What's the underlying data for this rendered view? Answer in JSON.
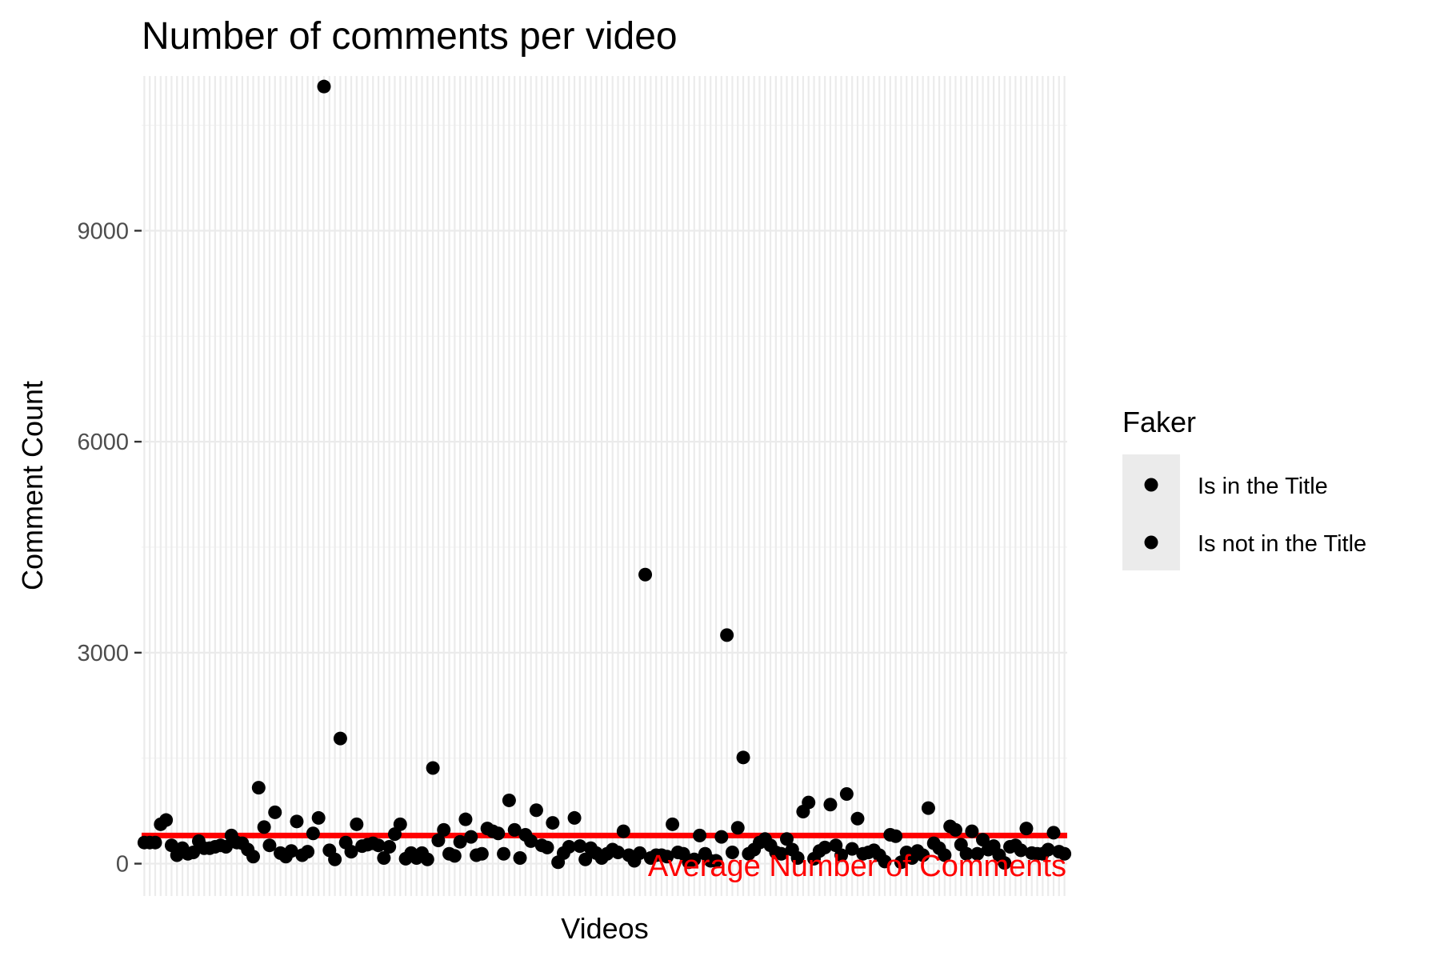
{
  "chart_data": {
    "type": "scatter",
    "title": "Number of comments per video",
    "xlabel": "Videos",
    "ylabel": "Comment Count",
    "ylim": [
      -460,
      11200
    ],
    "yticks": [
      0,
      3000,
      6000,
      9000
    ],
    "grid": true,
    "x_tick_labels_shown": false,
    "legend": {
      "title": "Faker",
      "position": "right",
      "entries": [
        "Is in the Title",
        "Is not in the Title"
      ]
    },
    "reference_line": {
      "label": "Average Number of Comments",
      "value": 400,
      "color": "#ff0000"
    },
    "point_color": "#000000",
    "series": [
      {
        "values": [
          300,
          300,
          300,
          560,
          620,
          260,
          120,
          220,
          140,
          160,
          320,
          220,
          220,
          240,
          260,
          240,
          400,
          300,
          290,
          200,
          100,
          1080,
          520,
          260,
          730,
          150,
          100,
          180,
          600,
          120,
          170,
          430,
          650,
          11050,
          190,
          60,
          1780,
          300,
          170,
          560,
          250,
          270,
          290,
          260,
          80,
          240,
          420,
          560,
          70,
          150,
          80,
          150,
          60,
          1360,
          330,
          480,
          140,
          110,
          310,
          630,
          380,
          120,
          140,
          500,
          460,
          430,
          140,
          900,
          480,
          80,
          410,
          320,
          760,
          260,
          230,
          580,
          20,
          150,
          240,
          650,
          250,
          60,
          220,
          150,
          80,
          140,
          200,
          160,
          460,
          120,
          40,
          150,
          4110,
          80,
          120,
          120,
          100,
          560,
          160,
          140,
          20,
          60,
          400,
          140,
          40,
          40,
          380,
          3250,
          160,
          510,
          1510,
          140,
          200,
          300,
          350,
          260,
          160,
          140,
          350,
          200,
          80,
          740,
          870,
          70,
          180,
          230,
          840,
          260,
          120,
          990,
          210,
          640,
          140,
          160,
          190,
          120,
          30,
          410,
          390,
          20,
          160,
          80,
          180,
          120,
          790,
          290,
          220,
          120,
          530,
          480,
          270,
          140,
          460,
          140,
          340,
          200,
          250,
          120,
          10,
          240,
          260,
          190,
          500,
          150,
          140,
          140,
          200,
          440,
          170,
          140
        ]
      }
    ]
  }
}
